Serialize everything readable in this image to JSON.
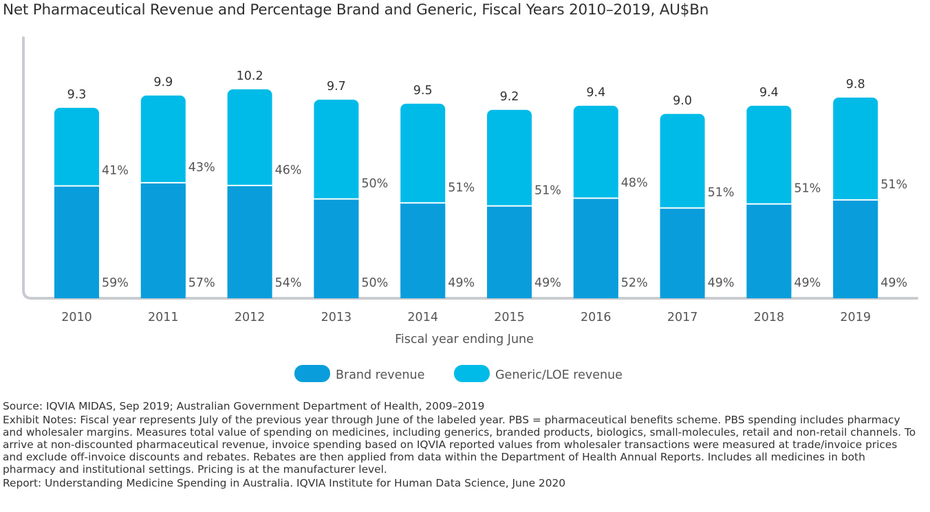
{
  "chart_data": {
    "type": "bar",
    "stacked": true,
    "title": "Net Pharmaceutical Revenue and Percentage Brand and Generic, Fiscal Years 2010–2019, AU$Bn",
    "xlabel": "Fiscal year ending June",
    "ylabel": "",
    "categories": [
      "2010",
      "2011",
      "2012",
      "2013",
      "2014",
      "2015",
      "2016",
      "2017",
      "2018",
      "2019"
    ],
    "totals": [
      9.3,
      9.9,
      10.2,
      9.7,
      9.5,
      9.2,
      9.4,
      9.0,
      9.4,
      9.8
    ],
    "total_labels": [
      "9.3",
      "9.9",
      "10.2",
      "9.7",
      "9.5",
      "9.2",
      "9.4",
      "9.0",
      "9.4",
      "9.8"
    ],
    "series": [
      {
        "name": "Brand revenue",
        "color": "#0a9ddc",
        "percent": [
          59,
          57,
          54,
          50,
          49,
          49,
          52,
          49,
          49,
          49
        ],
        "percent_labels": [
          "59%",
          "57%",
          "54%",
          "50%",
          "49%",
          "49%",
          "52%",
          "49%",
          "49%",
          "49%"
        ]
      },
      {
        "name": "Generic/LOE revenue",
        "color": "#00bbe8",
        "percent": [
          41,
          43,
          46,
          50,
          51,
          51,
          48,
          51,
          51,
          51
        ],
        "percent_labels": [
          "41%",
          "43%",
          "46%",
          "50%",
          "51%",
          "51%",
          "48%",
          "51%",
          "51%",
          "51%"
        ]
      }
    ],
    "ylim": [
      0,
      11
    ],
    "grid": false,
    "legend": "bottom-center"
  },
  "notes": {
    "source": "Source: IQVIA MIDAS, Sep 2019; Australian Government Department of Health, 2009–2019",
    "exhibit_notes": "Exhibit Notes: Fiscal year represents July of the previous year through June of the labeled year. PBS = pharmaceutical benefits scheme. PBS spending includes pharmacy and wholesaler margins. Measures total value of spending on medicines, including generics, branded products, biologics, small-molecules, retail and non-retail channels. To arrive at non-discounted pharmaceutical revenue, invoice spending based on IQVIA reported values from wholesaler transactions were measured at trade/invoice prices and exclude off-invoice discounts and rebates. Rebates are then applied from data within the Department of Health Annual Reports. Includes all medicines in both pharmacy and institutional settings. Pricing is at the manufacturer level.",
    "report": "Report: Understanding Medicine Spending in Australia. IQVIA Institute for Human Data Science, June 2020"
  }
}
